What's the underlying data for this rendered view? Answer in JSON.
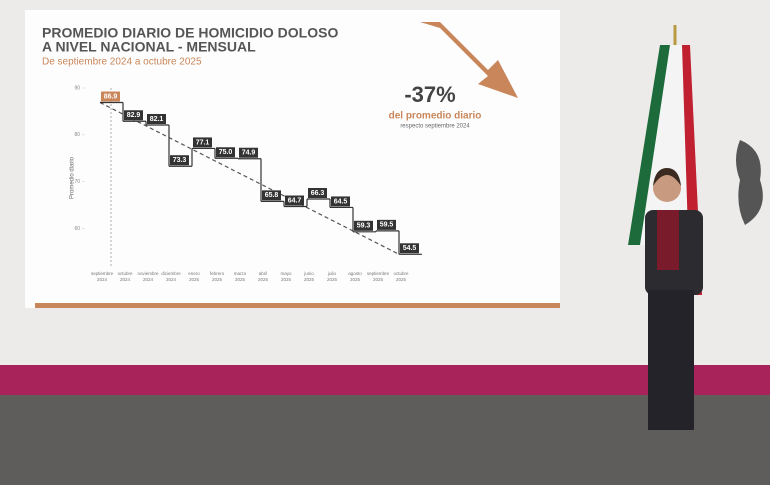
{
  "chart_data": {
    "type": "step",
    "title": [
      "PROMEDIO DIARIO DE HOMICIDIO DOLOSO",
      "A NIVEL NACIONAL - MENSUAL"
    ],
    "subtitle": "De septiembre 2024 a octubre 2025",
    "y_label": "Promedio diario",
    "annotation": {
      "headline": "-37%",
      "line1": "del promedio diario",
      "line2": "respecto septiembre 2024"
    },
    "categories": [
      [
        "septiembre",
        "2024"
      ],
      [
        "octubre",
        "2024"
      ],
      [
        "noviembre",
        "2024"
      ],
      [
        "diciembre",
        "2024"
      ],
      [
        "enero",
        "2025"
      ],
      [
        "febrero",
        "2025"
      ],
      [
        "marzo",
        "2025"
      ],
      [
        "abril",
        "2025"
      ],
      [
        "mayo",
        "2025"
      ],
      [
        "junio",
        "2025"
      ],
      [
        "julio",
        "2025"
      ],
      [
        "agosto",
        "2025"
      ],
      [
        "septiembre",
        "2025"
      ],
      [
        "octubre",
        "2025"
      ]
    ],
    "values": [
      86.9,
      82.9,
      82.1,
      73.3,
      77.1,
      75.0,
      74.9,
      65.8,
      64.7,
      66.3,
      64.5,
      59.3,
      59.5,
      54.5
    ],
    "value_labels": [
      "86.9",
      "82.9",
      "82.1",
      "73.3",
      "77.1",
      "75.0",
      "74.9",
      "65.8",
      "64.7",
      "66.3",
      "64.5",
      "59.3",
      "59.5",
      "54.5"
    ],
    "color": "#333333",
    "first_color": "#c8865a",
    "ylim": [
      52,
      90
    ],
    "yticks": [
      60,
      70,
      80,
      90
    ]
  }
}
